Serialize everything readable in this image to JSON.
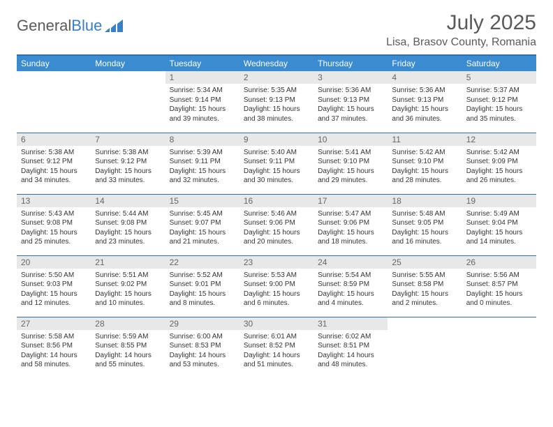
{
  "brand": {
    "part1": "General",
    "part2": "Blue"
  },
  "title": {
    "month": "July 2025",
    "location": "Lisa, Brasov County, Romania"
  },
  "style": {
    "header_blue": "#3b8bd0",
    "rule_blue": "#2f6fa8",
    "daynum_bg": "#e8e8e8",
    "text": "#333333",
    "muted": "#5a5a5a"
  },
  "weekdays": [
    "Sunday",
    "Monday",
    "Tuesday",
    "Wednesday",
    "Thursday",
    "Friday",
    "Saturday"
  ],
  "weeks": [
    [
      null,
      null,
      {
        "n": "1",
        "sunrise": "5:34 AM",
        "sunset": "9:14 PM",
        "daylight": "15 hours and 39 minutes."
      },
      {
        "n": "2",
        "sunrise": "5:35 AM",
        "sunset": "9:13 PM",
        "daylight": "15 hours and 38 minutes."
      },
      {
        "n": "3",
        "sunrise": "5:36 AM",
        "sunset": "9:13 PM",
        "daylight": "15 hours and 37 minutes."
      },
      {
        "n": "4",
        "sunrise": "5:36 AM",
        "sunset": "9:13 PM",
        "daylight": "15 hours and 36 minutes."
      },
      {
        "n": "5",
        "sunrise": "5:37 AM",
        "sunset": "9:12 PM",
        "daylight": "15 hours and 35 minutes."
      }
    ],
    [
      {
        "n": "6",
        "sunrise": "5:38 AM",
        "sunset": "9:12 PM",
        "daylight": "15 hours and 34 minutes."
      },
      {
        "n": "7",
        "sunrise": "5:38 AM",
        "sunset": "9:12 PM",
        "daylight": "15 hours and 33 minutes."
      },
      {
        "n": "8",
        "sunrise": "5:39 AM",
        "sunset": "9:11 PM",
        "daylight": "15 hours and 32 minutes."
      },
      {
        "n": "9",
        "sunrise": "5:40 AM",
        "sunset": "9:11 PM",
        "daylight": "15 hours and 30 minutes."
      },
      {
        "n": "10",
        "sunrise": "5:41 AM",
        "sunset": "9:10 PM",
        "daylight": "15 hours and 29 minutes."
      },
      {
        "n": "11",
        "sunrise": "5:42 AM",
        "sunset": "9:10 PM",
        "daylight": "15 hours and 28 minutes."
      },
      {
        "n": "12",
        "sunrise": "5:42 AM",
        "sunset": "9:09 PM",
        "daylight": "15 hours and 26 minutes."
      }
    ],
    [
      {
        "n": "13",
        "sunrise": "5:43 AM",
        "sunset": "9:08 PM",
        "daylight": "15 hours and 25 minutes."
      },
      {
        "n": "14",
        "sunrise": "5:44 AM",
        "sunset": "9:08 PM",
        "daylight": "15 hours and 23 minutes."
      },
      {
        "n": "15",
        "sunrise": "5:45 AM",
        "sunset": "9:07 PM",
        "daylight": "15 hours and 21 minutes."
      },
      {
        "n": "16",
        "sunrise": "5:46 AM",
        "sunset": "9:06 PM",
        "daylight": "15 hours and 20 minutes."
      },
      {
        "n": "17",
        "sunrise": "5:47 AM",
        "sunset": "9:06 PM",
        "daylight": "15 hours and 18 minutes."
      },
      {
        "n": "18",
        "sunrise": "5:48 AM",
        "sunset": "9:05 PM",
        "daylight": "15 hours and 16 minutes."
      },
      {
        "n": "19",
        "sunrise": "5:49 AM",
        "sunset": "9:04 PM",
        "daylight": "15 hours and 14 minutes."
      }
    ],
    [
      {
        "n": "20",
        "sunrise": "5:50 AM",
        "sunset": "9:03 PM",
        "daylight": "15 hours and 12 minutes."
      },
      {
        "n": "21",
        "sunrise": "5:51 AM",
        "sunset": "9:02 PM",
        "daylight": "15 hours and 10 minutes."
      },
      {
        "n": "22",
        "sunrise": "5:52 AM",
        "sunset": "9:01 PM",
        "daylight": "15 hours and 8 minutes."
      },
      {
        "n": "23",
        "sunrise": "5:53 AM",
        "sunset": "9:00 PM",
        "daylight": "15 hours and 6 minutes."
      },
      {
        "n": "24",
        "sunrise": "5:54 AM",
        "sunset": "8:59 PM",
        "daylight": "15 hours and 4 minutes."
      },
      {
        "n": "25",
        "sunrise": "5:55 AM",
        "sunset": "8:58 PM",
        "daylight": "15 hours and 2 minutes."
      },
      {
        "n": "26",
        "sunrise": "5:56 AM",
        "sunset": "8:57 PM",
        "daylight": "15 hours and 0 minutes."
      }
    ],
    [
      {
        "n": "27",
        "sunrise": "5:58 AM",
        "sunset": "8:56 PM",
        "daylight": "14 hours and 58 minutes."
      },
      {
        "n": "28",
        "sunrise": "5:59 AM",
        "sunset": "8:55 PM",
        "daylight": "14 hours and 55 minutes."
      },
      {
        "n": "29",
        "sunrise": "6:00 AM",
        "sunset": "8:53 PM",
        "daylight": "14 hours and 53 minutes."
      },
      {
        "n": "30",
        "sunrise": "6:01 AM",
        "sunset": "8:52 PM",
        "daylight": "14 hours and 51 minutes."
      },
      {
        "n": "31",
        "sunrise": "6:02 AM",
        "sunset": "8:51 PM",
        "daylight": "14 hours and 48 minutes."
      },
      null,
      null
    ]
  ],
  "labels": {
    "sunrise": "Sunrise:",
    "sunset": "Sunset:",
    "daylight": "Daylight:"
  }
}
